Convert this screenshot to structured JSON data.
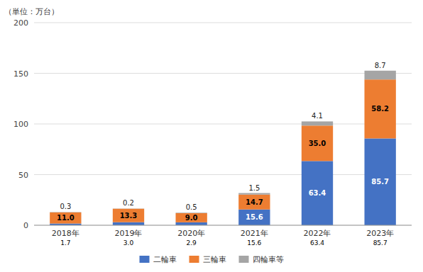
{
  "chart_data": {
    "type": "bar",
    "stacked": true,
    "ylabel": "（単位：万台）",
    "categories": [
      "2018年",
      "2019年",
      "2020年",
      "2021年",
      "2022年",
      "2023年"
    ],
    "series": [
      {
        "name": "二輪車",
        "color": "#4472C4",
        "values": [
          1.7,
          3.0,
          2.9,
          15.6,
          63.4,
          85.7
        ],
        "value_labels": [
          "1.7",
          "3.0",
          "2.9",
          "15.6",
          "63.4",
          "85.7"
        ]
      },
      {
        "name": "三輪車",
        "color": "#ED7D31",
        "values": [
          11.0,
          13.3,
          9.0,
          14.7,
          35.0,
          58.2
        ],
        "value_labels": [
          "11.0",
          "13.3",
          "9.0",
          "14.7",
          "35.0",
          "58.2"
        ]
      },
      {
        "name": "四輪車等",
        "color": "#A5A5A5",
        "values": [
          0.3,
          0.2,
          0.5,
          1.5,
          4.1,
          8.7
        ],
        "value_labels": [
          "0.3",
          "0.2",
          "0.5",
          "1.5",
          "4.1",
          "8.7"
        ]
      }
    ],
    "ylim": [
      0,
      200
    ],
    "yticks": [
      0,
      50,
      100,
      150,
      200
    ],
    "grid": true,
    "data_labels": true,
    "legend": "bottom"
  }
}
